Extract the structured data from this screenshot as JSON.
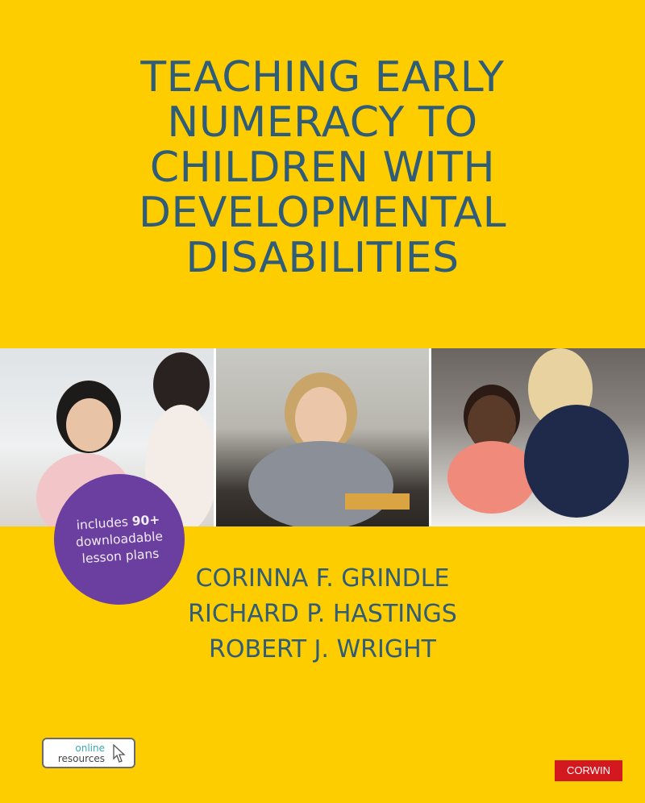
{
  "colors": {
    "background": "#fecd00",
    "title": "#2f5c78",
    "badge": "#6b3fa0",
    "publisher": "#d4181f"
  },
  "title": {
    "lines": [
      "TEACHING EARLY",
      "NUMERACY TO",
      "CHILDREN WITH",
      "DEVELOPMENTAL",
      "DISABILITIES"
    ]
  },
  "authors": [
    "CORINNA F. GRINDLE",
    "RICHARD P. HASTINGS",
    "ROBERT J. WRIGHT"
  ],
  "badge": {
    "line1_prefix": "includes ",
    "line1_bold": "90+",
    "line2": "downloadable",
    "line3": "lesson plans"
  },
  "online_resources": {
    "line1": "online",
    "line2": "resources",
    "icon": "cursor-arrow-icon"
  },
  "publisher": "CORWIN"
}
